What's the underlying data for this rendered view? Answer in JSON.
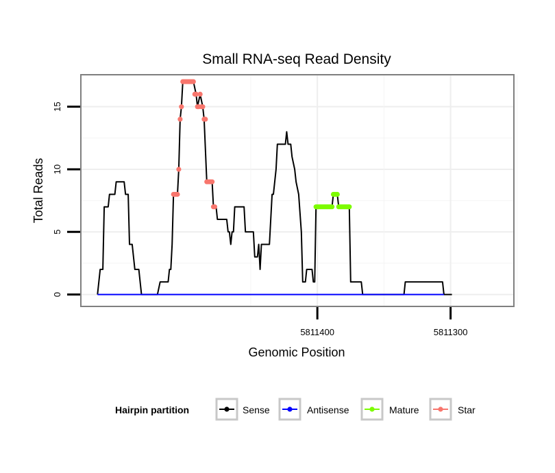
{
  "chart_data": {
    "type": "line",
    "title": "Small RNA-seq Read Density",
    "xlabel": "Genomic Position",
    "ylabel": "Total Reads",
    "xlim": [
      5811577,
      5811253
    ],
    "x_reversed": true,
    "ylim": [
      -0.9,
      17.5
    ],
    "grid": true,
    "x_ticks": [
      {
        "value": 5811400,
        "label": "5811400"
      },
      {
        "value": 5811300,
        "label": "5811300"
      }
    ],
    "y_ticks": [
      {
        "value": 0,
        "label": "0"
      },
      {
        "value": 5,
        "label": "5"
      },
      {
        "value": 10,
        "label": "10"
      },
      {
        "value": 15,
        "label": "15"
      }
    ],
    "legend": {
      "title": "Hairpin partition",
      "position": "bottom",
      "entries": [
        {
          "label": "Sense",
          "color": "#000000"
        },
        {
          "label": "Antisense",
          "color": "#0000ff"
        },
        {
          "label": "Mature",
          "color": "#7cfc00"
        },
        {
          "label": "Star",
          "color": "#f8766d"
        }
      ]
    },
    "series": [
      {
        "name": "Sense",
        "color": "#000000",
        "style": "line",
        "points": [
          [
            5811565,
            0
          ],
          [
            5811563,
            2
          ],
          [
            5811561,
            2
          ],
          [
            5811560,
            7
          ],
          [
            5811557,
            7
          ],
          [
            5811556,
            8
          ],
          [
            5811552,
            8
          ],
          [
            5811551,
            9
          ],
          [
            5811545,
            9
          ],
          [
            5811544,
            8
          ],
          [
            5811542,
            8
          ],
          [
            5811541,
            4
          ],
          [
            5811539,
            4
          ],
          [
            5811537,
            2
          ],
          [
            5811534,
            2
          ],
          [
            5811532,
            0
          ],
          [
            5811520,
            0
          ],
          [
            5811518,
            1
          ],
          [
            5811512,
            1
          ],
          [
            5811511,
            2
          ],
          [
            5811510,
            2
          ],
          [
            5811509,
            4
          ],
          [
            5811508,
            8
          ],
          [
            5811505,
            8
          ],
          [
            5811504,
            10
          ],
          [
            5811503,
            14
          ],
          [
            5811502,
            15
          ],
          [
            5811501,
            17
          ],
          [
            5811493,
            17
          ],
          [
            5811491,
            16
          ],
          [
            5811490,
            15
          ],
          [
            5811488,
            16
          ],
          [
            5811486,
            15
          ],
          [
            5811485,
            14
          ],
          [
            5811483,
            9
          ],
          [
            5811479,
            9
          ],
          [
            5811478,
            7
          ],
          [
            5811476,
            7
          ],
          [
            5811475,
            6
          ],
          [
            5811468,
            6
          ],
          [
            5811467,
            5
          ],
          [
            5811466,
            5
          ],
          [
            5811465,
            4
          ],
          [
            5811464,
            5
          ],
          [
            5811463,
            5
          ],
          [
            5811462,
            7
          ],
          [
            5811455,
            7
          ],
          [
            5811454,
            5
          ],
          [
            5811448,
            5
          ],
          [
            5811447,
            3
          ],
          [
            5811445,
            3
          ],
          [
            5811444,
            4
          ],
          [
            5811443,
            2
          ],
          [
            5811442,
            4
          ],
          [
            5811436,
            4
          ],
          [
            5811434,
            8
          ],
          [
            5811433,
            8
          ],
          [
            5811431,
            10
          ],
          [
            5811430,
            12
          ],
          [
            5811424,
            12
          ],
          [
            5811423,
            13
          ],
          [
            5811422,
            12
          ],
          [
            5811420,
            12
          ],
          [
            5811419,
            11
          ],
          [
            5811417,
            10
          ],
          [
            5811416,
            9
          ],
          [
            5811414,
            8
          ],
          [
            5811412,
            5
          ],
          [
            5811411,
            1
          ],
          [
            5811409,
            1
          ],
          [
            5811408,
            2
          ],
          [
            5811404,
            2
          ],
          [
            5811403,
            1
          ],
          [
            5811402,
            1
          ],
          [
            5811401,
            7
          ],
          [
            5811389,
            7
          ],
          [
            5811388,
            8
          ],
          [
            5811385,
            8
          ],
          [
            5811384,
            7
          ],
          [
            5811376,
            7
          ],
          [
            5811375,
            1
          ],
          [
            5811367,
            1
          ],
          [
            5811366,
            0
          ],
          [
            5811335,
            0
          ],
          [
            5811334,
            1
          ],
          [
            5811306,
            1
          ],
          [
            5811305,
            0
          ],
          [
            5811299,
            0
          ]
        ]
      },
      {
        "name": "Antisense",
        "color": "#0000ff",
        "style": "line",
        "points": [
          [
            5811565,
            0
          ],
          [
            5811305,
            0
          ]
        ]
      },
      {
        "name": "Mature",
        "color": "#7cfc00",
        "style": "points",
        "points": [
          [
            5811401,
            7
          ],
          [
            5811400,
            7
          ],
          [
            5811399,
            7
          ],
          [
            5811398,
            7
          ],
          [
            5811397,
            7
          ],
          [
            5811396,
            7
          ],
          [
            5811395,
            7
          ],
          [
            5811394,
            7
          ],
          [
            5811393,
            7
          ],
          [
            5811392,
            7
          ],
          [
            5811391,
            7
          ],
          [
            5811390,
            7
          ],
          [
            5811389,
            7
          ],
          [
            5811388,
            8
          ],
          [
            5811387,
            8
          ],
          [
            5811386,
            8
          ],
          [
            5811385,
            8
          ],
          [
            5811384,
            7
          ],
          [
            5811383,
            7
          ],
          [
            5811382,
            7
          ],
          [
            5811381,
            7
          ],
          [
            5811380,
            7
          ],
          [
            5811379,
            7
          ],
          [
            5811378,
            7
          ],
          [
            5811377,
            7
          ],
          [
            5811376,
            7
          ]
        ]
      },
      {
        "name": "Star",
        "color": "#f8766d",
        "style": "points",
        "points": [
          [
            5811508,
            8
          ],
          [
            5811507,
            8
          ],
          [
            5811506,
            8
          ],
          [
            5811505,
            8
          ],
          [
            5811504,
            10
          ],
          [
            5811503,
            14
          ],
          [
            5811502,
            15
          ],
          [
            5811501,
            17
          ],
          [
            5811500,
            17
          ],
          [
            5811499,
            17
          ],
          [
            5811498,
            17
          ],
          [
            5811497,
            17
          ],
          [
            5811496,
            17
          ],
          [
            5811495,
            17
          ],
          [
            5811494,
            17
          ],
          [
            5811493,
            17
          ],
          [
            5811492,
            16
          ],
          [
            5811491,
            16
          ],
          [
            5811490,
            15
          ],
          [
            5811489,
            15
          ],
          [
            5811488,
            16
          ],
          [
            5811487,
            15
          ],
          [
            5811486,
            15
          ],
          [
            5811485,
            14
          ],
          [
            5811484,
            14
          ],
          [
            5811483,
            9
          ],
          [
            5811482,
            9
          ],
          [
            5811481,
            9
          ],
          [
            5811480,
            9
          ],
          [
            5811479,
            9
          ],
          [
            5811478,
            7
          ],
          [
            5811477,
            7
          ]
        ]
      }
    ]
  }
}
